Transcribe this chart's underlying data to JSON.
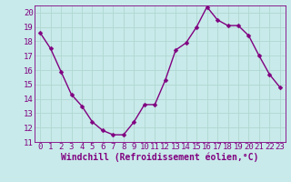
{
  "x": [
    0,
    1,
    2,
    3,
    4,
    5,
    6,
    7,
    8,
    9,
    10,
    11,
    12,
    13,
    14,
    15,
    16,
    17,
    18,
    19,
    20,
    21,
    22,
    23
  ],
  "y": [
    18.6,
    17.5,
    15.9,
    14.3,
    13.5,
    12.4,
    11.8,
    11.5,
    11.5,
    12.4,
    13.6,
    13.6,
    15.3,
    17.4,
    17.9,
    19.0,
    20.4,
    19.5,
    19.1,
    19.1,
    18.4,
    17.0,
    15.7,
    14.8
  ],
  "line_color": "#800080",
  "marker_color": "#800080",
  "bg_color": "#c8eaea",
  "grid_color": "#b0d8d0",
  "xlabel": "Windchill (Refroidissement éolien,°C)",
  "ylim": [
    11,
    20.5
  ],
  "xlim": [
    -0.5,
    23.5
  ],
  "yticks": [
    11,
    12,
    13,
    14,
    15,
    16,
    17,
    18,
    19,
    20
  ],
  "xticks": [
    0,
    1,
    2,
    3,
    4,
    5,
    6,
    7,
    8,
    9,
    10,
    11,
    12,
    13,
    14,
    15,
    16,
    17,
    18,
    19,
    20,
    21,
    22,
    23
  ],
  "xlabel_fontsize": 7,
  "tick_fontsize": 6.5,
  "line_width": 1.0,
  "marker_size": 2.5
}
